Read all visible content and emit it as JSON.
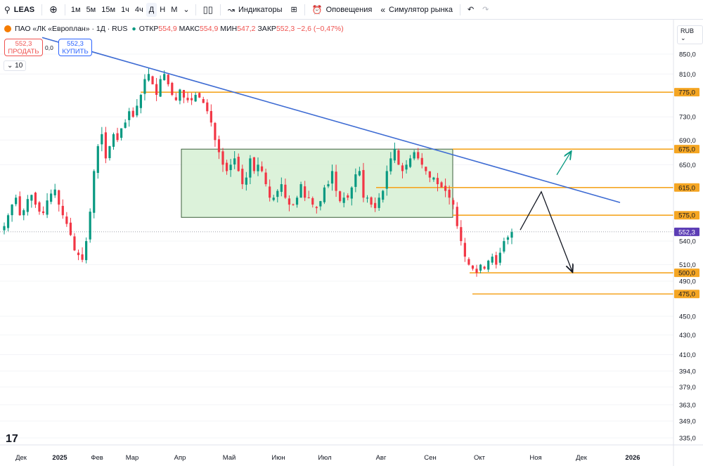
{
  "toolbar": {
    "symbol": "LEAS",
    "add_icon": "plus-circle-icon",
    "intervals": [
      "1м",
      "5м",
      "15м",
      "1ч",
      "4ч",
      "Д",
      "Н",
      "М"
    ],
    "active_interval": "Д",
    "indicators_label": "Индикаторы",
    "alerts_label": "Оповещения",
    "replay_label": "Симулятор рынка"
  },
  "legend": {
    "title": "ПАО «ЛК «Европлан» · 1Д · RUS",
    "open_label": "ОТКР",
    "open_value": "554,9",
    "high_label": "МАКС",
    "high_value": "554,9",
    "low_label": "МИН",
    "low_value": "547,2",
    "close_label": "ЗАКР",
    "close_value": "552,3",
    "change": "−2,6 (−0,47%)",
    "sell_price": "552,3",
    "sell_label": "ПРОДАТЬ",
    "buy_price": "552,3",
    "buy_label": "КУПИТЬ",
    "spread": "0,0",
    "volume_toggle": "10",
    "currency": "RUB"
  },
  "colors": {
    "up": "#089981",
    "down": "#f23645",
    "level": "#f5a623",
    "trend": "#3d6bd3",
    "box_fill": "#d6f0d4",
    "box_stroke": "#3b5f3b",
    "price_label": "#5c3db5"
  },
  "chart_data": {
    "type": "candlestick",
    "title": "ПАО «ЛК «Европлан» · 1Д · RUS",
    "x_ticks": [
      "Дек",
      "2025",
      "Фев",
      "Мар",
      "Апр",
      "Май",
      "Июн",
      "Июл",
      "Авг",
      "Сен",
      "Окт",
      "Ноя",
      "Дек",
      "2026"
    ],
    "y_ticks": [
      850.0,
      810.0,
      730.0,
      690.0,
      650.0,
      540.0,
      510.0,
      490.0,
      450.0,
      430.0,
      410.0,
      394.0,
      379.0,
      363.0,
      349.0,
      335.0
    ],
    "y_tick_labels": [
      "850,0",
      "810,0",
      "730,0",
      "690,0",
      "650,0",
      "540,0",
      "510,0",
      "490,0",
      "450,0",
      "430,0",
      "410,0",
      "394,0",
      "379,0",
      "363,0",
      "349,0",
      "335,0"
    ],
    "ylim": [
      320,
      880
    ],
    "y_scale": "log",
    "last_price": 552.3,
    "last_price_label": "552,3",
    "horizontal_levels": [
      {
        "value": 775.0,
        "label": "775,0"
      },
      {
        "value": 675.0,
        "label": "675,0"
      },
      {
        "value": 615.0,
        "label": "615,0"
      },
      {
        "value": 575.0,
        "label": "575,0"
      },
      {
        "value": 500.0,
        "label": "500,0"
      },
      {
        "value": 475.0,
        "label": "475,0"
      }
    ],
    "range_box": {
      "top": 675.0,
      "bottom": 572.0,
      "from": "Апр",
      "to": "Сен"
    },
    "trendline": {
      "from_value": 870,
      "to_value": 585
    },
    "scenario_paths": [
      {
        "name": "bullish",
        "points": [
          [
            0,
            615
          ],
          [
            1,
            675
          ]
        ]
      },
      {
        "name": "bearish",
        "points": [
          [
            0,
            552
          ],
          [
            1,
            615
          ],
          [
            2,
            500
          ]
        ]
      }
    ],
    "ohlc_closes": [
      560,
      575,
      590,
      600,
      575,
      582,
      598,
      604,
      590,
      580,
      578,
      596,
      606,
      612,
      590,
      575,
      563,
      548,
      528,
      522,
      516,
      540,
      580,
      640,
      680,
      700,
      660,
      680,
      700,
      690,
      710,
      720,
      740,
      730,
      750,
      770,
      800,
      810,
      790,
      770,
      800,
      810,
      790,
      770,
      760,
      780,
      765,
      760,
      760,
      770,
      765,
      755,
      740,
      720,
      690,
      670,
      650,
      640,
      650,
      660,
      640,
      620,
      630,
      660,
      640,
      650,
      640,
      620,
      600,
      600,
      610,
      620,
      600,
      590,
      590,
      600,
      620,
      600,
      600,
      590,
      585,
      595,
      615,
      620,
      640,
      610,
      595,
      600,
      600,
      615,
      635,
      640,
      600,
      600,
      590,
      585,
      600,
      610,
      640,
      660,
      675,
      650,
      640,
      650,
      660,
      670,
      660,
      650,
      640,
      630,
      630,
      620,
      615,
      610,
      600,
      590,
      560,
      540,
      520,
      510,
      505,
      500,
      510,
      505,
      515,
      520,
      510,
      525,
      540,
      545,
      552
    ]
  }
}
